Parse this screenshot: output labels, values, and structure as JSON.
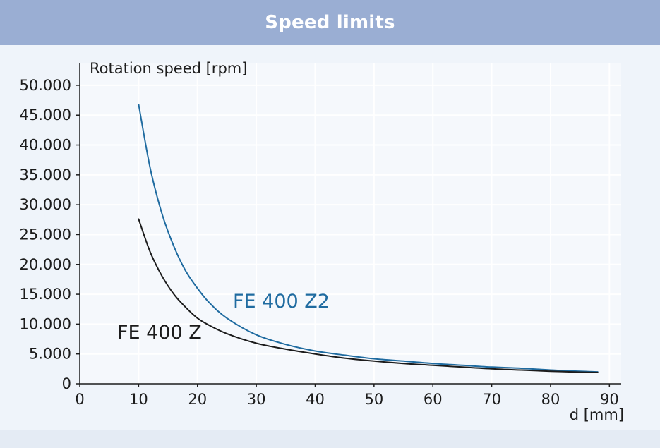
{
  "header": {
    "title": "Speed limits"
  },
  "chart_data": {
    "type": "line",
    "title": "Speed limits",
    "xlabel": "d [mm]",
    "ylabel": "Rotation speed [rpm]",
    "xlim": [
      0,
      92
    ],
    "ylim": [
      0,
      52000
    ],
    "x_ticks": [
      0,
      10,
      20,
      30,
      40,
      50,
      60,
      70,
      80,
      90
    ],
    "x_tick_labels": [
      "0",
      "10",
      "20",
      "30",
      "40",
      "50",
      "60",
      "70",
      "80",
      "90"
    ],
    "y_ticks": [
      0,
      5000,
      10000,
      15000,
      20000,
      25000,
      30000,
      35000,
      40000,
      45000,
      50000
    ],
    "y_tick_labels": [
      "0",
      "5.000",
      "10.000",
      "15.000",
      "20.000",
      "25.000",
      "30.000",
      "35.000",
      "40.000",
      "45.000",
      "50.000"
    ],
    "grid": true,
    "series": [
      {
        "name": "FE 400 Z2",
        "color": "#1f6ba0",
        "x": [
          10,
          12,
          14,
          16,
          18,
          20,
          22,
          25,
          30,
          35,
          40,
          45,
          50,
          55,
          60,
          65,
          70,
          75,
          80,
          85,
          88
        ],
        "values": [
          46800,
          36000,
          28400,
          23000,
          18900,
          16000,
          13600,
          11000,
          8200,
          6600,
          5500,
          4800,
          4200,
          3800,
          3400,
          3100,
          2800,
          2600,
          2300,
          2100,
          2000
        ]
      },
      {
        "name": "FE 400 Z",
        "color": "#1c1c1c",
        "x": [
          10,
          12,
          14,
          16,
          18,
          20,
          22,
          25,
          30,
          35,
          40,
          45,
          50,
          55,
          60,
          65,
          70,
          75,
          80,
          85,
          88
        ],
        "values": [
          27600,
          22000,
          18000,
          15000,
          12800,
          11000,
          9800,
          8400,
          6800,
          5800,
          5000,
          4300,
          3800,
          3400,
          3100,
          2800,
          2500,
          2300,
          2100,
          1950,
          1900
        ]
      }
    ]
  }
}
